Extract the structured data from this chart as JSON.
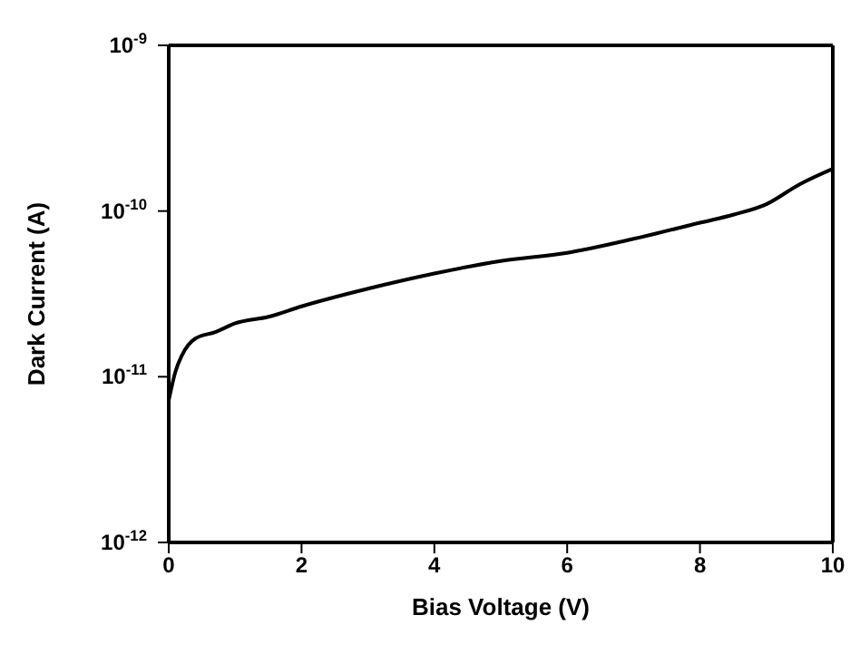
{
  "chart_data": {
    "type": "line",
    "xlabel": "Bias Voltage (V)",
    "ylabel": "Dark Current (A)",
    "log": "y",
    "xlim": [
      0,
      10
    ],
    "xticks": [
      0,
      2,
      4,
      6,
      8,
      10
    ],
    "ylim": [
      1e-12,
      1e-09
    ],
    "yticks": [
      {
        "value": 1e-12,
        "label": "10$^{-12}$"
      },
      {
        "value": 1e-11,
        "label": "10$^{-11}$"
      },
      {
        "value": 1e-10,
        "label": "10$^{-10}$"
      },
      {
        "value": 1e-09,
        "label": "10$^{-9}$"
      }
    ],
    "grid": false,
    "legend": false,
    "marker": "none",
    "line_style": "solid",
    "x": [
      0,
      0.1,
      0.2,
      0.4,
      0.7,
      1,
      1.5,
      2,
      3,
      4,
      5,
      6,
      7,
      8,
      8.5,
      9,
      9.5,
      10
    ],
    "series": [
      {
        "color": "#000000",
        "values": [
          7.2e-12,
          1.07e-11,
          1.35e-11,
          1.7e-11,
          1.86e-11,
          2.1e-11,
          2.3e-11,
          2.66e-11,
          3.4e-11,
          4.2e-11,
          5e-11,
          5.6e-11,
          6.8e-11,
          8.5e-11,
          9.5e-11,
          1.1e-10,
          1.45e-10,
          1.8e-10
        ]
      }
    ]
  }
}
